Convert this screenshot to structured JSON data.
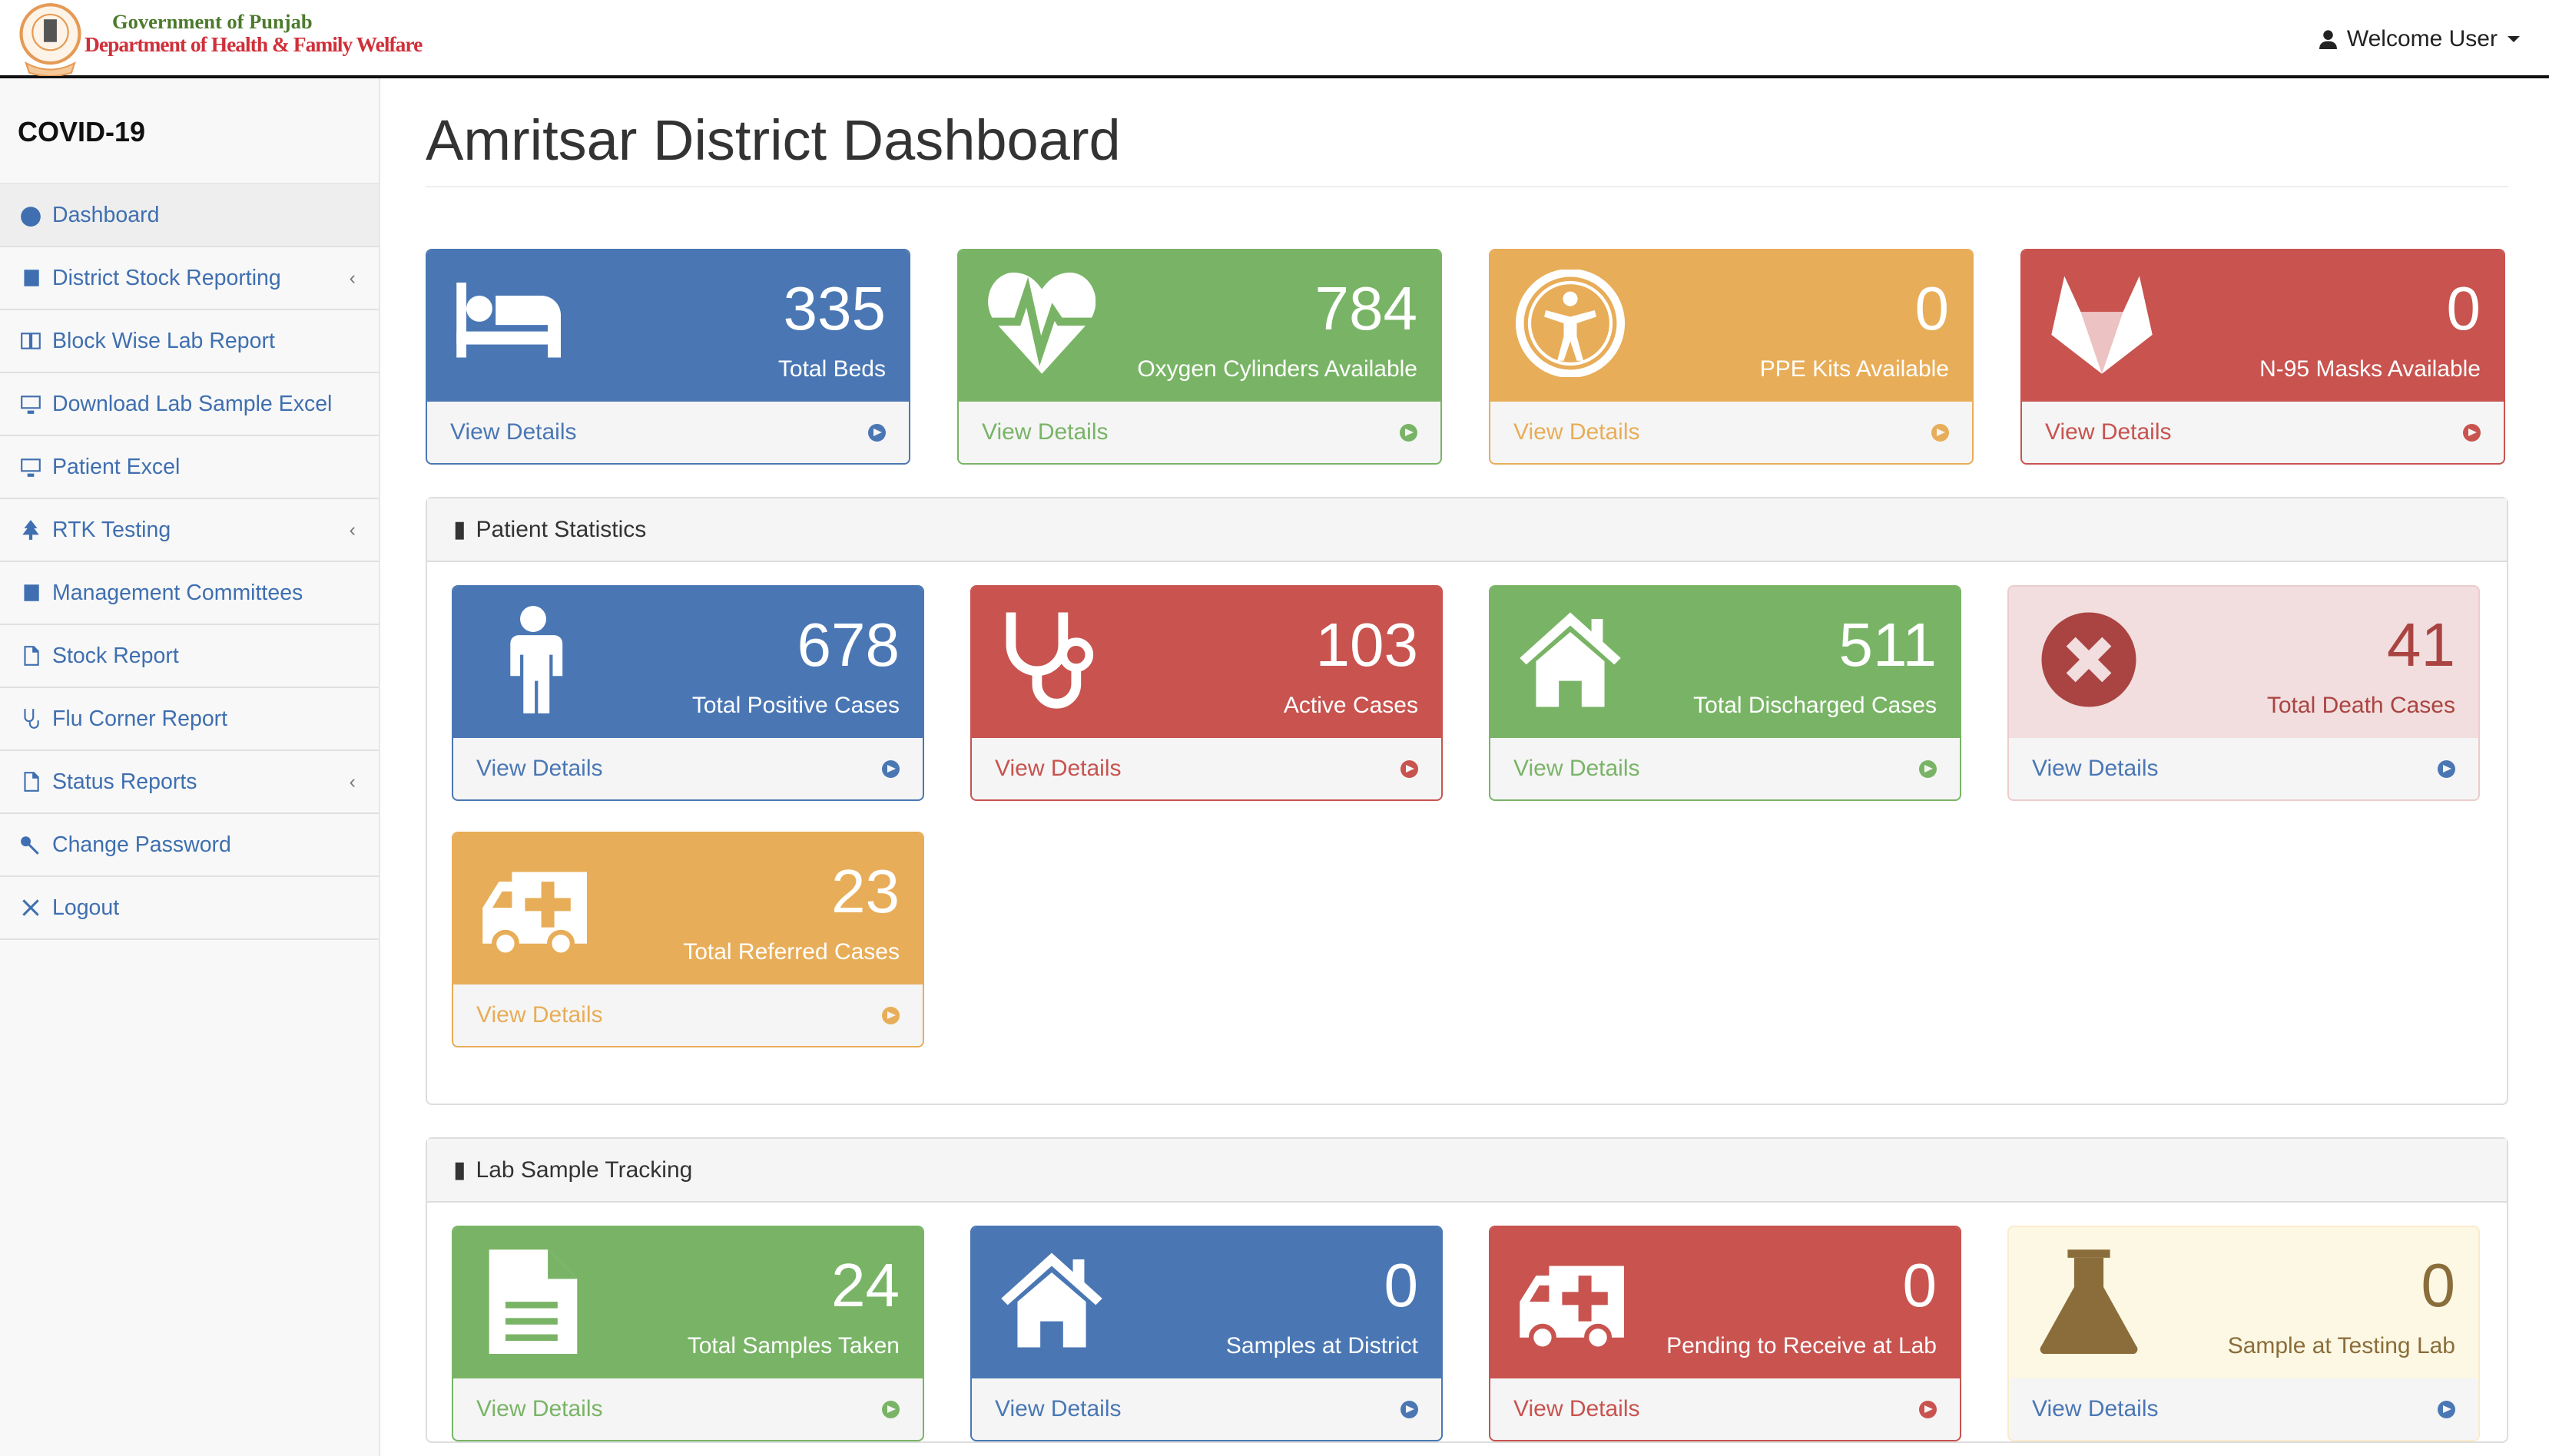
{
  "header": {
    "org_line1": "Government of Punjab",
    "org_line2": "Department of Health & Family Welfare",
    "user_menu": "Welcome User"
  },
  "sidebar": {
    "title": "COVID-19",
    "items": [
      {
        "label": "Dashboard",
        "icon": "dashboard-icon"
      },
      {
        "label": "District Stock Reporting",
        "icon": "book-icon",
        "chevron": "‹"
      },
      {
        "label": "Block Wise Lab Report",
        "icon": "columns-icon"
      },
      {
        "label": "Download Lab Sample Excel",
        "icon": "desktop-icon"
      },
      {
        "label": "Patient Excel",
        "icon": "desktop-icon"
      },
      {
        "label": "RTK Testing",
        "icon": "tree-icon",
        "chevron": "‹"
      },
      {
        "label": "Management Committees",
        "icon": "book-icon"
      },
      {
        "label": "Stock Report",
        "icon": "file-icon"
      },
      {
        "label": "Flu Corner Report",
        "icon": "stethoscope-icon"
      },
      {
        "label": "Status Reports",
        "icon": "file-icon",
        "chevron": "‹"
      },
      {
        "label": "Change Password",
        "icon": "key-icon"
      },
      {
        "label": "Logout",
        "icon": "close-icon"
      }
    ]
  },
  "page": {
    "title": "Amritsar District Dashboard"
  },
  "view_details": "View Details",
  "stock": [
    {
      "value": "335",
      "label": "Total Beds",
      "icon": "bed-icon",
      "color": "#4a77b4"
    },
    {
      "value": "784",
      "label": "Oxygen Cylinders Available",
      "icon": "heartbeat-icon",
      "color": "#79b466"
    },
    {
      "value": "0",
      "label": "PPE Kits Available",
      "icon": "accessibility-icon",
      "color": "#e8ad58"
    },
    {
      "value": "0",
      "label": "N-95 Masks Available",
      "icon": "gitlab-icon",
      "color": "#c8534f"
    }
  ],
  "patient_panel": {
    "title": "Patient Statistics",
    "cards": [
      {
        "value": "678",
        "label": "Total Positive Cases",
        "icon": "male-icon"
      },
      {
        "value": "103",
        "label": "Active Cases",
        "icon": "stethoscope-icon"
      },
      {
        "value": "511",
        "label": "Total Discharged Cases",
        "icon": "home-icon"
      },
      {
        "value": "41",
        "label": "Total Death Cases",
        "icon": "times-circle-icon"
      },
      {
        "value": "23",
        "label": "Total Referred Cases",
        "icon": "ambulance-icon"
      }
    ]
  },
  "lab_panel": {
    "title": "Lab Sample Tracking",
    "cards": [
      {
        "value": "24",
        "label": "Total Samples Taken",
        "icon": "file-text-icon"
      },
      {
        "value": "0",
        "label": "Samples at District",
        "icon": "home-icon"
      },
      {
        "value": "0",
        "label": "Pending to Receive at Lab",
        "icon": "ambulance-icon"
      },
      {
        "value": "0",
        "label": "Sample at Testing Lab",
        "icon": "flask-icon"
      }
    ]
  }
}
